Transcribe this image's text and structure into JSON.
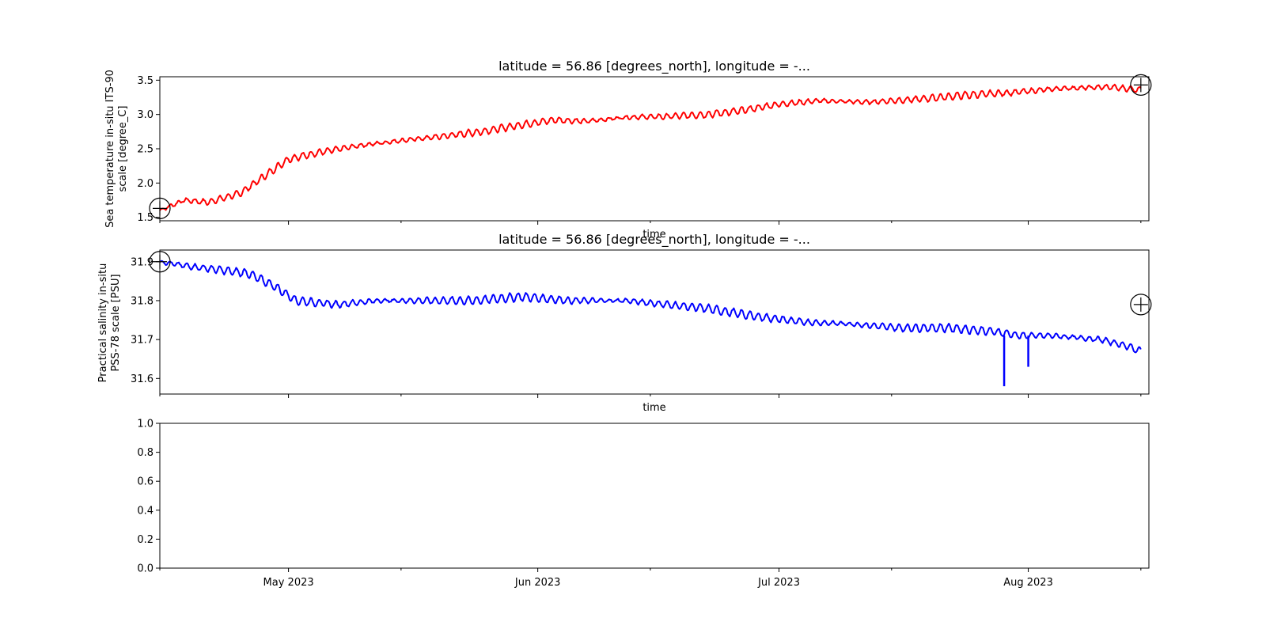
{
  "chart_data": [
    {
      "type": "line",
      "title": "latitude = 56.86 [degrees_north], longitude = -...",
      "xlabel": "time",
      "ylabel_lines": [
        "Sea temperature in-situ ITS-90",
        "scale [degree_C]"
      ],
      "ylim": [
        1.45,
        3.55
      ],
      "yticks": [
        "1.5",
        "2.0",
        "2.5",
        "3.0",
        "3.5"
      ],
      "x_range": [
        "2023-04-15",
        "2023-08-16"
      ],
      "grid": false,
      "series": [
        {
          "color": "#ff0000",
          "x": [
            "2023-04-15",
            "2023-04-18",
            "2023-04-21",
            "2023-04-25",
            "2023-04-28",
            "2023-05-01",
            "2023-05-05",
            "2023-05-10",
            "2023-05-15",
            "2023-05-20",
            "2023-05-25",
            "2023-05-30",
            "2023-06-03",
            "2023-06-07",
            "2023-06-12",
            "2023-06-17",
            "2023-06-22",
            "2023-06-26",
            "2023-07-01",
            "2023-07-06",
            "2023-07-12",
            "2023-07-18",
            "2023-07-24",
            "2023-07-30",
            "2023-08-05",
            "2023-08-11",
            "2023-08-15"
          ],
          "y": [
            1.6,
            1.75,
            1.72,
            1.85,
            2.1,
            2.35,
            2.45,
            2.55,
            2.62,
            2.68,
            2.75,
            2.85,
            2.92,
            2.9,
            2.96,
            2.97,
            3.0,
            3.05,
            3.15,
            3.2,
            3.18,
            3.22,
            3.28,
            3.32,
            3.38,
            3.4,
            3.36
          ]
        }
      ],
      "markers": [
        {
          "x": "2023-04-15",
          "y": 1.63,
          "symbol": "circled-plus"
        },
        {
          "x": "2023-08-15",
          "y": 3.43,
          "symbol": "circled-plus"
        }
      ]
    },
    {
      "type": "line",
      "title": "latitude = 56.86 [degrees_north], longitude = -...",
      "xlabel": "time",
      "ylabel_lines": [
        "Practical salinity in-situ",
        "PSS-78 scale [PSU]"
      ],
      "ylim": [
        31.56,
        31.93
      ],
      "yticks": [
        "31.6",
        "31.7",
        "31.8",
        "31.9"
      ],
      "x_range": [
        "2023-04-15",
        "2023-08-16"
      ],
      "grid": false,
      "series": [
        {
          "color": "#0000ff",
          "x": [
            "2023-04-15",
            "2023-04-18",
            "2023-04-22",
            "2023-04-26",
            "2023-04-29",
            "2023-05-02",
            "2023-05-07",
            "2023-05-12",
            "2023-05-18",
            "2023-05-24",
            "2023-05-30",
            "2023-06-05",
            "2023-06-12",
            "2023-06-17",
            "2023-06-22",
            "2023-06-28",
            "2023-07-04",
            "2023-07-10",
            "2023-07-16",
            "2023-07-22",
            "2023-07-28",
            "2023-07-31",
            "2023-08-04",
            "2023-08-10",
            "2023-08-13",
            "2023-08-15"
          ],
          "y": [
            31.9,
            31.89,
            31.88,
            31.87,
            31.84,
            31.8,
            31.79,
            31.8,
            31.8,
            31.8,
            31.81,
            31.8,
            31.8,
            31.79,
            31.78,
            31.76,
            31.745,
            31.74,
            31.73,
            31.73,
            31.72,
            31.71,
            31.71,
            31.7,
            31.685,
            31.67
          ]
        }
      ],
      "spikes": [
        {
          "x": "2023-07-29",
          "y_min": 31.58,
          "y_base": 31.71
        },
        {
          "x": "2023-08-01",
          "y_min": 31.63,
          "y_base": 31.71
        }
      ],
      "markers": [
        {
          "x": "2023-04-15",
          "y": 31.9,
          "symbol": "circled-plus"
        },
        {
          "x": "2023-08-15",
          "y": 31.79,
          "symbol": "circled-plus"
        }
      ]
    },
    {
      "type": "line",
      "title": "",
      "ylim": [
        0.0,
        1.0
      ],
      "yticks": [
        "0.0",
        "0.2",
        "0.4",
        "0.6",
        "0.8",
        "1.0"
      ],
      "x_range": [
        "2023-04-15",
        "2023-08-16"
      ],
      "xticks": [
        "May 2023",
        "Jun 2023",
        "Jul 2023",
        "Aug 2023"
      ],
      "grid": false,
      "series": []
    }
  ]
}
